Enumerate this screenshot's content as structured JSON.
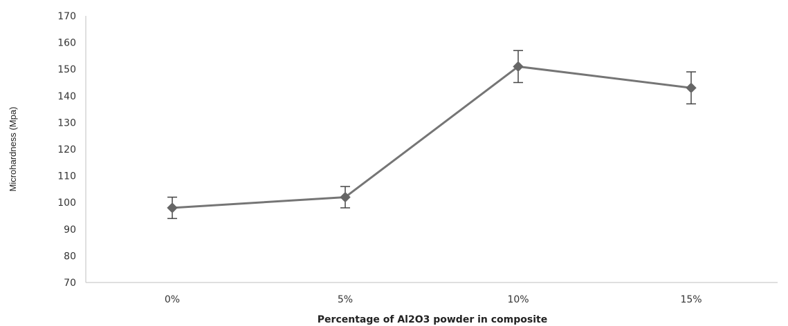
{
  "chart_data": {
    "type": "line",
    "title": "",
    "xlabel": "Percentage of Al2O3 powder in composite",
    "ylabel": "Microhardness (Mpa)",
    "categories": [
      "0%",
      "5%",
      "10%",
      "15%"
    ],
    "series": [
      {
        "values": [
          98,
          102,
          151,
          143
        ],
        "error": [
          4,
          4,
          6,
          6
        ],
        "color": "#666666"
      }
    ],
    "ylim": [
      70,
      170
    ],
    "yticks": [
      70,
      80,
      90,
      100,
      110,
      120,
      130,
      140,
      150,
      160,
      170
    ],
    "grid": false,
    "legend": "none",
    "marker": "diamond"
  }
}
